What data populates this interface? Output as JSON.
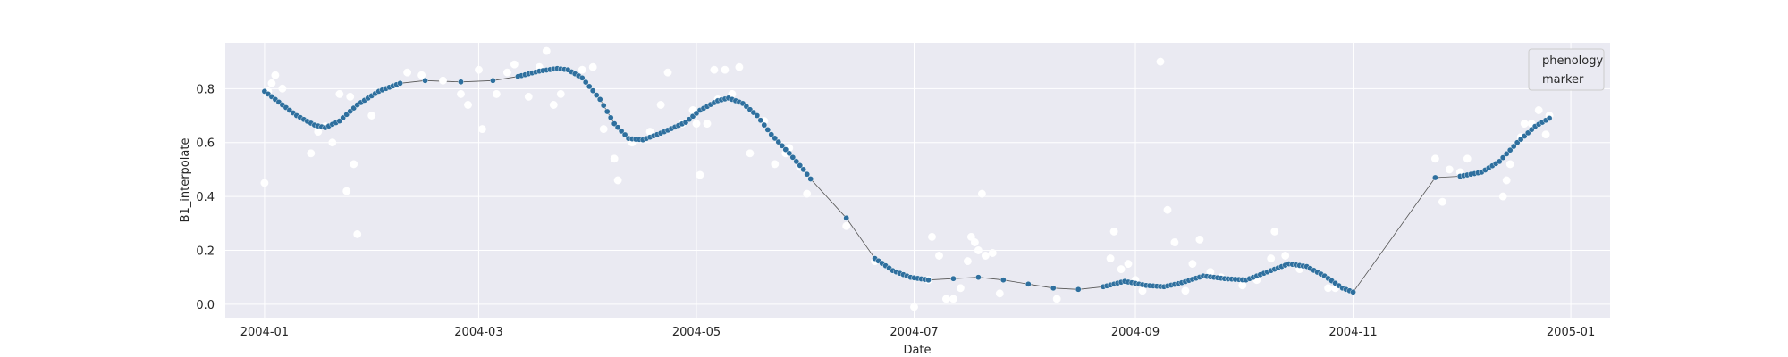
{
  "chart_data": {
    "type": "scatter",
    "xlabel": "Date",
    "ylabel": "B1_interpolate",
    "x_ticks": [
      "2004-01",
      "2004-03",
      "2004-05",
      "2004-07",
      "2004-09",
      "2004-11",
      "2005-01"
    ],
    "x_tick_values": [
      "2004-01-01",
      "2004-03-01",
      "2004-05-01",
      "2004-07-01",
      "2004-09-01",
      "2004-11-01",
      "2005-01-01"
    ],
    "xlim": [
      "2003-12-21",
      "2005-01-12"
    ],
    "y_ticks": [
      "0.0",
      "0.2",
      "0.4",
      "0.6",
      "0.8"
    ],
    "y_tick_values": [
      0.0,
      0.2,
      0.4,
      0.6,
      0.8
    ],
    "ylim": [
      -0.05,
      0.97
    ],
    "grid": true,
    "legend": {
      "placement": "top-right",
      "entries": [
        "phenology",
        "marker"
      ]
    },
    "colors": {
      "background": "#eaeaf2",
      "grid": "#ffffff",
      "interpolated": "#2e6f9e",
      "observed": "#ffffff",
      "line": "#555555"
    },
    "series": [
      {
        "role": "interpolated-curve",
        "style": "blue points joined by a thin grey line",
        "points": [
          [
            "2004-01-01",
            0.79
          ],
          [
            "2004-01-05",
            0.75
          ],
          [
            "2004-01-10",
            0.7
          ],
          [
            "2004-01-15",
            0.665
          ],
          [
            "2004-01-18",
            0.655
          ],
          [
            "2004-01-22",
            0.68
          ],
          [
            "2004-01-27",
            0.74
          ],
          [
            "2004-02-02",
            0.79
          ],
          [
            "2004-02-08",
            0.82
          ],
          [
            "2004-02-15",
            0.83
          ],
          [
            "2004-02-25",
            0.825
          ],
          [
            "2004-03-05",
            0.83
          ],
          [
            "2004-03-12",
            0.845
          ],
          [
            "2004-03-18",
            0.865
          ],
          [
            "2004-03-23",
            0.875
          ],
          [
            "2004-03-26",
            0.87
          ],
          [
            "2004-03-30",
            0.84
          ],
          [
            "2004-04-04",
            0.76
          ],
          [
            "2004-04-08",
            0.67
          ],
          [
            "2004-04-12",
            0.615
          ],
          [
            "2004-04-16",
            0.61
          ],
          [
            "2004-04-22",
            0.64
          ],
          [
            "2004-04-28",
            0.675
          ],
          [
            "2004-05-02",
            0.72
          ],
          [
            "2004-05-07",
            0.755
          ],
          [
            "2004-05-10",
            0.765
          ],
          [
            "2004-05-14",
            0.745
          ],
          [
            "2004-05-18",
            0.7
          ],
          [
            "2004-05-22",
            0.63
          ],
          [
            "2004-05-27",
            0.56
          ],
          [
            "2004-05-31",
            0.5
          ],
          [
            "2004-06-02",
            0.465
          ],
          [
            "2004-06-12",
            0.32
          ],
          [
            "2004-06-20",
            0.17
          ],
          [
            "2004-06-25",
            0.125
          ],
          [
            "2004-06-30",
            0.1
          ],
          [
            "2004-07-05",
            0.09
          ],
          [
            "2004-07-12",
            0.095
          ],
          [
            "2004-07-19",
            0.1
          ],
          [
            "2004-07-26",
            0.09
          ],
          [
            "2004-08-02",
            0.075
          ],
          [
            "2004-08-09",
            0.06
          ],
          [
            "2004-08-16",
            0.055
          ],
          [
            "2004-08-23",
            0.065
          ],
          [
            "2004-08-29",
            0.085
          ],
          [
            "2004-09-04",
            0.07
          ],
          [
            "2004-09-09",
            0.065
          ],
          [
            "2004-09-14",
            0.08
          ],
          [
            "2004-09-20",
            0.105
          ],
          [
            "2004-09-26",
            0.095
          ],
          [
            "2004-10-02",
            0.09
          ],
          [
            "2004-10-08",
            0.12
          ],
          [
            "2004-10-14",
            0.15
          ],
          [
            "2004-10-19",
            0.14
          ],
          [
            "2004-10-24",
            0.105
          ],
          [
            "2004-10-29",
            0.06
          ],
          [
            "2004-11-01",
            0.045
          ],
          [
            "2004-11-24",
            0.47
          ],
          [
            "2004-12-01",
            0.475
          ],
          [
            "2004-12-07",
            0.49
          ],
          [
            "2004-12-12",
            0.53
          ],
          [
            "2004-12-17",
            0.6
          ],
          [
            "2004-12-22",
            0.66
          ],
          [
            "2004-12-26",
            0.69
          ]
        ]
      },
      {
        "role": "observations",
        "style": "white points, no line",
        "points": [
          [
            "2004-01-01",
            0.45
          ],
          [
            "2004-01-02",
            0.79
          ],
          [
            "2004-01-03",
            0.82
          ],
          [
            "2004-01-04",
            0.85
          ],
          [
            "2004-01-06",
            0.8
          ],
          [
            "2004-01-14",
            0.56
          ],
          [
            "2004-01-16",
            0.64
          ],
          [
            "2004-01-18",
            0.66
          ],
          [
            "2004-01-20",
            0.6
          ],
          [
            "2004-01-22",
            0.78
          ],
          [
            "2004-01-24",
            0.42
          ],
          [
            "2004-01-25",
            0.77
          ],
          [
            "2004-01-26",
            0.52
          ],
          [
            "2004-01-27",
            0.26
          ],
          [
            "2004-01-31",
            0.7
          ],
          [
            "2004-02-10",
            0.86
          ],
          [
            "2004-02-14",
            0.85
          ],
          [
            "2004-02-20",
            0.83
          ],
          [
            "2004-02-25",
            0.78
          ],
          [
            "2004-02-27",
            0.74
          ],
          [
            "2004-03-01",
            0.87
          ],
          [
            "2004-03-02",
            0.65
          ],
          [
            "2004-03-06",
            0.78
          ],
          [
            "2004-03-09",
            0.86
          ],
          [
            "2004-03-11",
            0.89
          ],
          [
            "2004-03-15",
            0.77
          ],
          [
            "2004-03-18",
            0.88
          ],
          [
            "2004-03-20",
            0.94
          ],
          [
            "2004-03-22",
            0.74
          ],
          [
            "2004-03-24",
            0.78
          ],
          [
            "2004-03-30",
            0.87
          ],
          [
            "2004-04-02",
            0.88
          ],
          [
            "2004-04-05",
            0.65
          ],
          [
            "2004-04-08",
            0.54
          ],
          [
            "2004-04-09",
            0.46
          ],
          [
            "2004-04-13",
            0.6
          ],
          [
            "2004-04-18",
            0.64
          ],
          [
            "2004-04-21",
            0.74
          ],
          [
            "2004-04-23",
            0.86
          ],
          [
            "2004-04-27",
            0.67
          ],
          [
            "2004-04-30",
            0.72
          ],
          [
            "2004-05-01",
            0.67
          ],
          [
            "2004-05-02",
            0.48
          ],
          [
            "2004-05-04",
            0.67
          ],
          [
            "2004-05-06",
            0.87
          ],
          [
            "2004-05-07",
            0.76
          ],
          [
            "2004-05-09",
            0.87
          ],
          [
            "2004-05-11",
            0.78
          ],
          [
            "2004-05-13",
            0.88
          ],
          [
            "2004-05-16",
            0.56
          ],
          [
            "2004-05-20",
            0.68
          ],
          [
            "2004-05-23",
            0.52
          ],
          [
            "2004-05-26",
            0.56
          ],
          [
            "2004-05-27",
            0.58
          ],
          [
            "2004-05-30",
            0.51
          ],
          [
            "2004-06-01",
            0.41
          ],
          [
            "2004-06-12",
            0.29
          ],
          [
            "2004-06-20",
            0.16
          ],
          [
            "2004-07-01",
            -0.01
          ],
          [
            "2004-07-05",
            0.09
          ],
          [
            "2004-07-06",
            0.25
          ],
          [
            "2004-07-08",
            0.18
          ],
          [
            "2004-07-10",
            0.02
          ],
          [
            "2004-07-12",
            0.02
          ],
          [
            "2004-07-14",
            0.06
          ],
          [
            "2004-07-16",
            0.16
          ],
          [
            "2004-07-17",
            0.25
          ],
          [
            "2004-07-18",
            0.23
          ],
          [
            "2004-07-19",
            0.2
          ],
          [
            "2004-07-20",
            0.41
          ],
          [
            "2004-07-21",
            0.18
          ],
          [
            "2004-07-23",
            0.19
          ],
          [
            "2004-07-25",
            0.04
          ],
          [
            "2004-08-10",
            0.02
          ],
          [
            "2004-08-25",
            0.17
          ],
          [
            "2004-08-26",
            0.27
          ],
          [
            "2004-08-28",
            0.13
          ],
          [
            "2004-08-30",
            0.15
          ],
          [
            "2004-09-01",
            0.09
          ],
          [
            "2004-09-03",
            0.05
          ],
          [
            "2004-09-08",
            0.9
          ],
          [
            "2004-09-10",
            0.35
          ],
          [
            "2004-09-12",
            0.23
          ],
          [
            "2004-09-15",
            0.05
          ],
          [
            "2004-09-17",
            0.15
          ],
          [
            "2004-09-19",
            0.24
          ],
          [
            "2004-09-22",
            0.12
          ],
          [
            "2004-09-25",
            0.1
          ],
          [
            "2004-10-01",
            0.07
          ],
          [
            "2004-10-05",
            0.09
          ],
          [
            "2004-10-09",
            0.17
          ],
          [
            "2004-10-10",
            0.27
          ],
          [
            "2004-10-13",
            0.18
          ],
          [
            "2004-10-17",
            0.13
          ],
          [
            "2004-10-25",
            0.06
          ],
          [
            "2004-10-27",
            0.06
          ],
          [
            "2004-11-24",
            0.54
          ],
          [
            "2004-11-26",
            0.38
          ],
          [
            "2004-11-28",
            0.5
          ],
          [
            "2004-12-01",
            0.49
          ],
          [
            "2004-12-03",
            0.54
          ],
          [
            "2004-12-13",
            0.4
          ],
          [
            "2004-12-14",
            0.46
          ],
          [
            "2004-12-15",
            0.52
          ],
          [
            "2004-12-18",
            0.62
          ],
          [
            "2004-12-19",
            0.67
          ],
          [
            "2004-12-21",
            0.67
          ],
          [
            "2004-12-23",
            0.72
          ],
          [
            "2004-12-26",
            0.7
          ],
          [
            "2004-12-25",
            0.63
          ]
        ]
      }
    ]
  }
}
